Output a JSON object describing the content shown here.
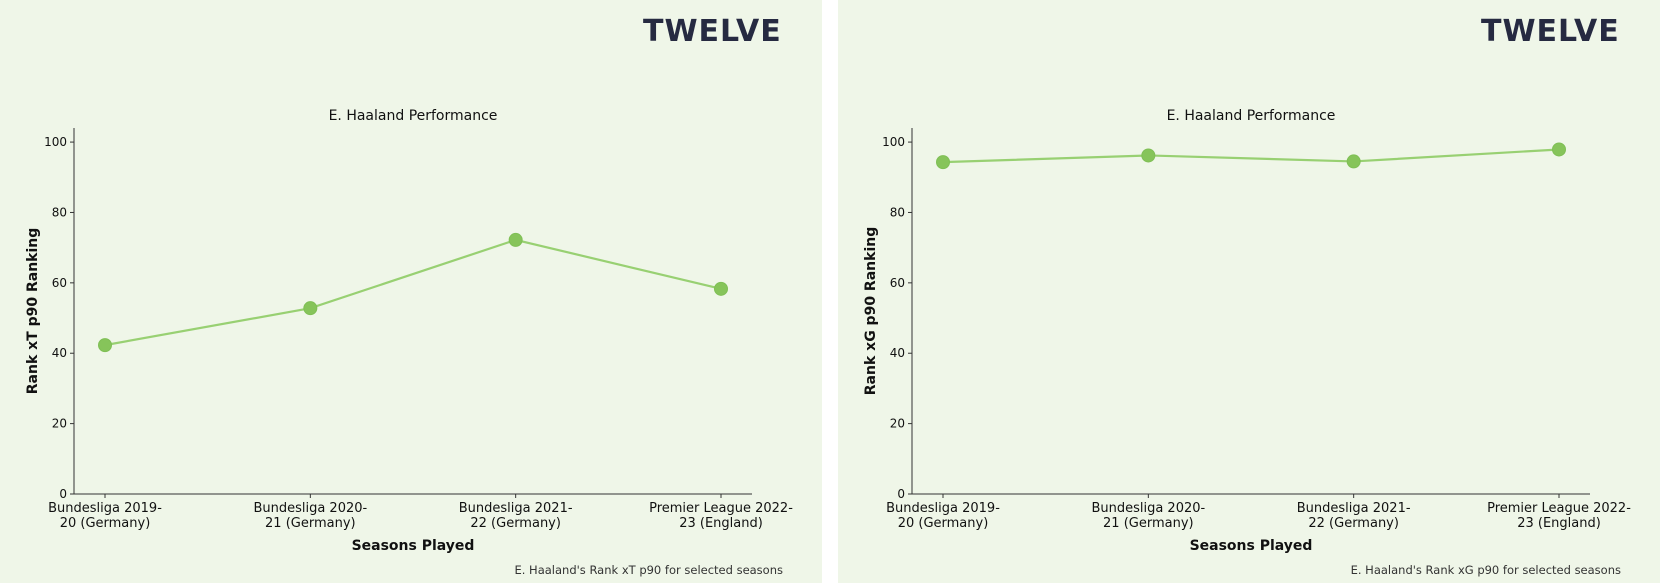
{
  "brand": {
    "logo_text": "TWELVE",
    "colors": {
      "background": "#eff6e8",
      "line": "#98d072",
      "marker": "#86c45a",
      "logo": "#262a41"
    }
  },
  "chart_data": [
    {
      "type": "line",
      "title": "E. Haaland Performance",
      "xlabel": "Seasons Played",
      "ylabel": "Rank xT p90 Ranking",
      "caption": "E. Haaland's Rank xT p90 for selected seasons",
      "categories": [
        [
          "Bundesliga 2019-",
          "20 (Germany)"
        ],
        [
          "Bundesliga 2020-",
          "21 (Germany)"
        ],
        [
          "Bundesliga 2021-",
          "22 (Germany)"
        ],
        [
          "Premier League 2022-",
          "23 (England)"
        ]
      ],
      "values": [
        42.3,
        52.8,
        72.2,
        58.3
      ],
      "ylim": [
        0,
        104
      ],
      "yticks": [
        0,
        20,
        40,
        60,
        80,
        100
      ],
      "grid": false,
      "legend": "none"
    },
    {
      "type": "line",
      "title": "E. Haaland Performance",
      "xlabel": "Seasons Played",
      "ylabel": "Rank xG p90 Ranking",
      "caption": "E. Haaland's Rank xG p90 for selected seasons",
      "categories": [
        [
          "Bundesliga 2019-",
          "20 (Germany)"
        ],
        [
          "Bundesliga 2020-",
          "21 (Germany)"
        ],
        [
          "Bundesliga 2021-",
          "22 (Germany)"
        ],
        [
          "Premier League 2022-",
          "23 (England)"
        ]
      ],
      "values": [
        94.3,
        96.2,
        94.5,
        97.9
      ],
      "ylim": [
        0,
        104
      ],
      "yticks": [
        0,
        20,
        40,
        60,
        80,
        100
      ],
      "grid": false,
      "legend": "none"
    }
  ]
}
